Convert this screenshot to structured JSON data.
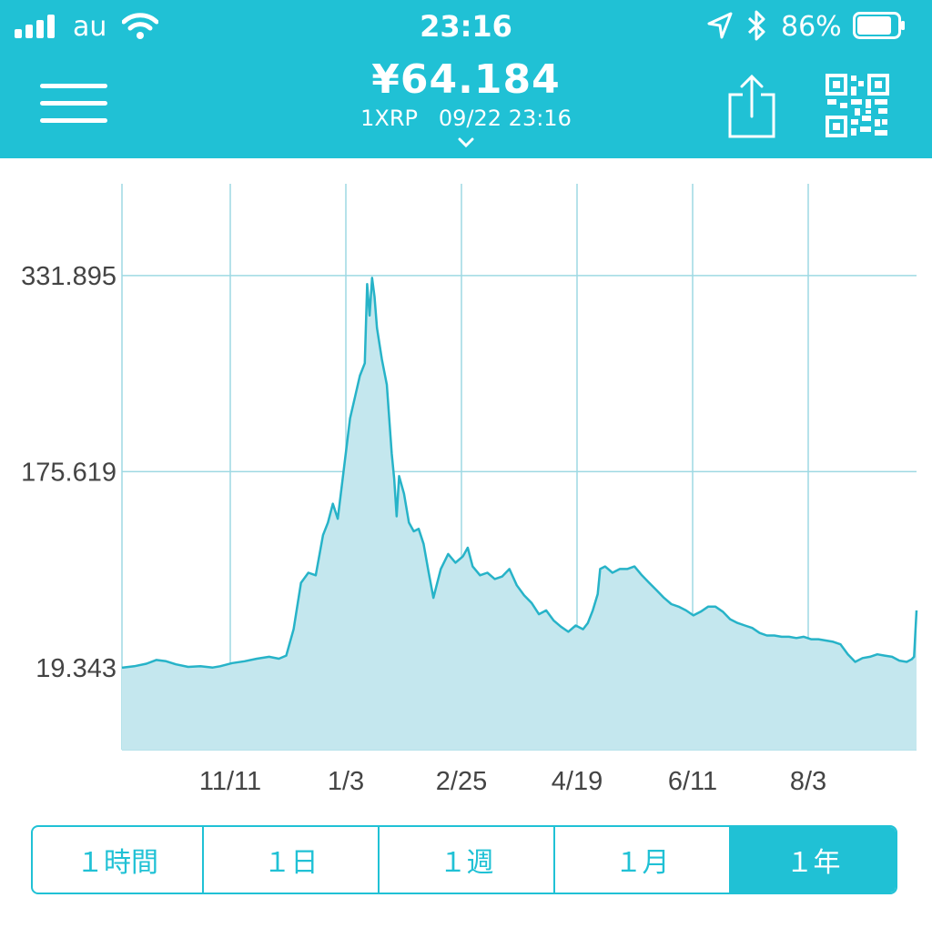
{
  "status_bar": {
    "carrier": "au",
    "time": "23:16",
    "battery_percent": "86%",
    "battery_level": 0.86
  },
  "header": {
    "price": "¥64.184",
    "subtitle": "1XRP   09/22 23:16",
    "icons": [
      "menu-icon",
      "chevron-down-icon",
      "share-icon",
      "qr-code-icon"
    ]
  },
  "colors": {
    "accent": "#20c1d5",
    "chart_line": "#27b3c8",
    "chart_fill": "#c4e7ee",
    "grid": "#9ed9e3"
  },
  "chart_data": {
    "type": "area",
    "x_tick_labels": [
      "11/11",
      "1/3",
      "2/25",
      "4/19",
      "6/11",
      "8/3"
    ],
    "y_tick_labels": [
      "331.895",
      "175.619",
      "19.343"
    ],
    "y_ticks": [
      331.895,
      175.619,
      19.343
    ],
    "ylim": [
      -46,
      405
    ],
    "grid": true,
    "series": [
      {
        "values": [
          [
            0,
            19.3
          ],
          [
            5,
            20.5
          ],
          [
            10,
            22.5
          ],
          [
            14,
            25.5
          ],
          [
            18,
            24.5
          ],
          [
            22,
            22
          ],
          [
            27,
            20
          ],
          [
            32,
            20.5
          ],
          [
            37,
            19.5
          ],
          [
            40,
            20.5
          ],
          [
            45,
            23
          ],
          [
            50,
            24.5
          ],
          [
            55,
            26.5
          ],
          [
            60,
            28
          ],
          [
            64,
            26.5
          ],
          [
            67,
            29
          ],
          [
            70,
            50
          ],
          [
            73,
            87
          ],
          [
            76,
            95
          ],
          [
            79,
            93
          ],
          [
            82,
            125
          ],
          [
            84,
            135
          ],
          [
            86,
            150
          ],
          [
            88,
            138
          ],
          [
            90,
            170
          ],
          [
            93,
            218
          ],
          [
            95,
            235
          ],
          [
            97,
            252
          ],
          [
            99,
            262
          ],
          [
            100,
            325
          ],
          [
            101,
            300
          ],
          [
            102,
            330
          ],
          [
            103,
            315
          ],
          [
            104,
            290
          ],
          [
            106,
            265
          ],
          [
            108,
            245
          ],
          [
            110,
            190
          ],
          [
            111,
            170
          ],
          [
            112,
            140
          ],
          [
            113,
            172
          ],
          [
            115,
            158
          ],
          [
            117,
            135
          ],
          [
            119,
            128
          ],
          [
            121,
            130
          ],
          [
            123,
            118
          ],
          [
            125,
            96
          ],
          [
            127,
            75
          ],
          [
            130,
            98
          ],
          [
            133,
            110
          ],
          [
            136,
            103
          ],
          [
            139,
            108
          ],
          [
            141,
            115
          ],
          [
            143,
            100
          ],
          [
            146,
            93
          ],
          [
            149,
            95
          ],
          [
            152,
            90
          ],
          [
            155,
            92
          ],
          [
            158,
            98
          ],
          [
            161,
            85
          ],
          [
            164,
            77
          ],
          [
            167,
            71
          ],
          [
            170,
            62
          ],
          [
            173,
            65
          ],
          [
            176,
            57
          ],
          [
            179,
            52
          ],
          [
            182,
            48
          ],
          [
            185,
            53
          ],
          [
            188,
            50
          ],
          [
            190,
            55
          ],
          [
            192,
            65
          ],
          [
            194,
            78
          ],
          [
            195,
            98
          ],
          [
            197,
            100
          ],
          [
            200,
            95
          ],
          [
            203,
            98
          ],
          [
            206,
            98
          ],
          [
            209,
            100
          ],
          [
            212,
            93
          ],
          [
            215,
            87
          ],
          [
            218,
            81
          ],
          [
            221,
            75
          ],
          [
            224,
            70
          ],
          [
            227,
            68
          ],
          [
            230,
            65
          ],
          [
            233,
            61
          ],
          [
            236,
            64
          ],
          [
            239,
            68
          ],
          [
            242,
            68
          ],
          [
            245,
            64
          ],
          [
            248,
            58
          ],
          [
            251,
            55
          ],
          [
            254,
            53
          ],
          [
            257,
            51
          ],
          [
            260,
            47
          ],
          [
            263,
            45
          ],
          [
            266,
            45
          ],
          [
            269,
            44
          ],
          [
            272,
            44
          ],
          [
            275,
            43
          ],
          [
            278,
            44
          ],
          [
            281,
            42
          ],
          [
            284,
            42
          ],
          [
            287,
            41
          ],
          [
            290,
            40
          ],
          [
            293,
            38
          ],
          [
            296,
            30
          ],
          [
            299,
            24
          ],
          [
            302,
            27
          ],
          [
            305,
            28
          ],
          [
            308,
            30
          ],
          [
            311,
            29
          ],
          [
            314,
            28
          ],
          [
            317,
            25
          ],
          [
            320,
            24
          ],
          [
            322,
            26
          ],
          [
            323,
            28
          ],
          [
            324,
            65
          ]
        ]
      }
    ]
  },
  "tabs": [
    {
      "label": "１時間",
      "active": false
    },
    {
      "label": "１日",
      "active": false
    },
    {
      "label": "１週",
      "active": false
    },
    {
      "label": "１月",
      "active": false
    },
    {
      "label": "１年",
      "active": true
    }
  ]
}
